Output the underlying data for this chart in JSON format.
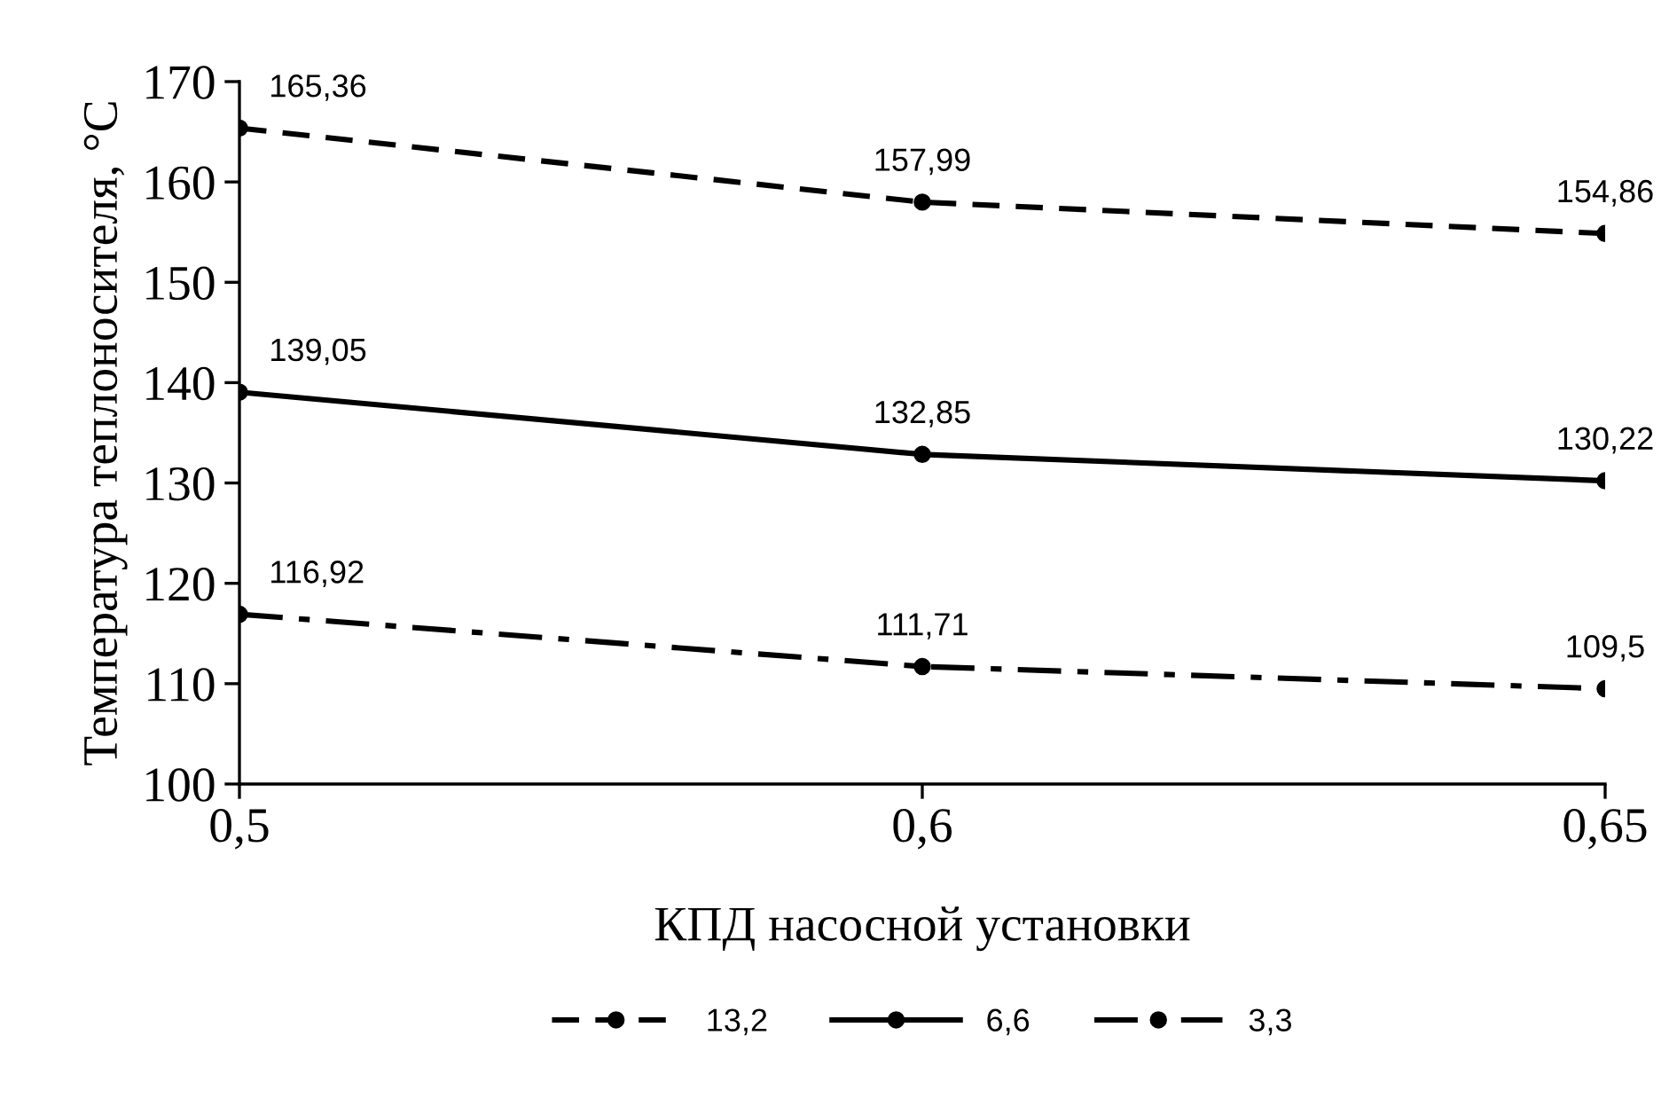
{
  "chart_data": {
    "type": "line",
    "xlabel": "КПД насосной установки",
    "ylabel": "Температура теплоносителя, °C",
    "categories": [
      "0,5",
      "0,6",
      "0,65"
    ],
    "ylim": [
      100,
      170
    ],
    "yticks": [
      100,
      110,
      120,
      130,
      140,
      150,
      160,
      170
    ],
    "grid": false,
    "legend": "bottom",
    "marker": "circle",
    "series": [
      {
        "name": "13,2",
        "color": "#000000",
        "line_style": "dashed",
        "values": [
          165.36,
          157.99,
          154.86
        ],
        "value_labels": [
          "165,36",
          "157,99",
          "154,86"
        ]
      },
      {
        "name": "6,6",
        "color": "#000000",
        "line_style": "solid",
        "values": [
          139.05,
          132.85,
          130.22
        ],
        "value_labels": [
          "139,05",
          "132,85",
          "130,22"
        ]
      },
      {
        "name": "3,3",
        "color": "#000000",
        "line_style": "dashdot",
        "values": [
          116.92,
          111.71,
          109.5
        ],
        "value_labels": [
          "116,92",
          "111,71",
          "109,5"
        ]
      }
    ]
  }
}
